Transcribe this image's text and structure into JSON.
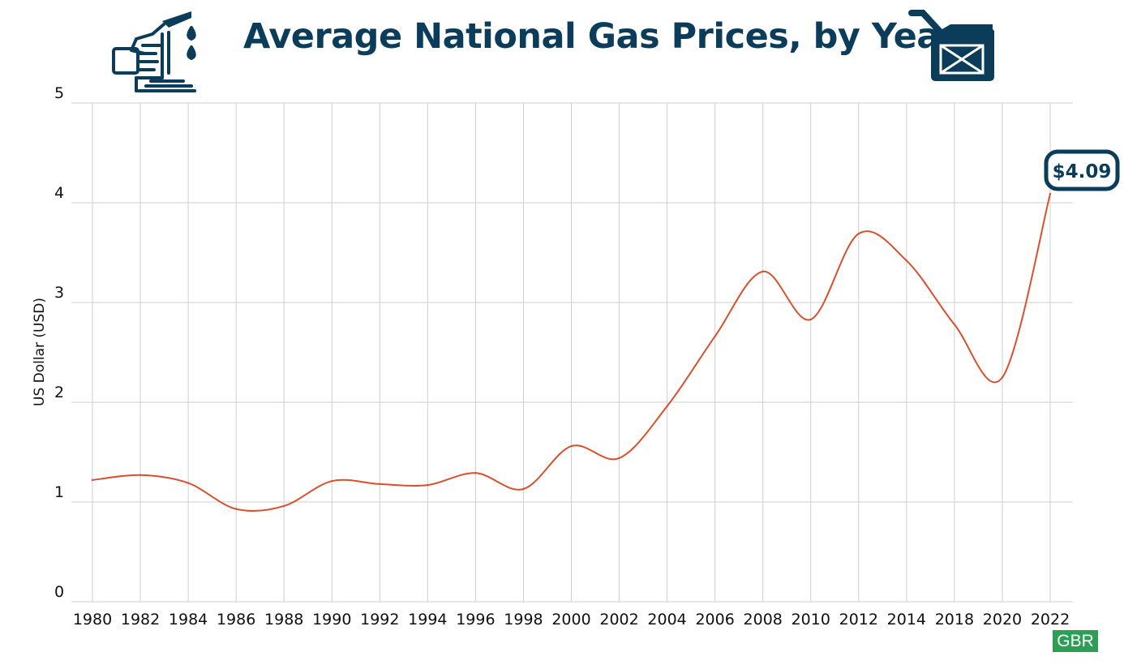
{
  "chart_data": {
    "type": "line",
    "title": "Average National Gas Prices, by Year",
    "ylabel": "US Dollar (USD)",
    "xlabel": "",
    "ylim": [
      0,
      5
    ],
    "yticks": [
      0,
      1,
      2,
      3,
      4,
      5
    ],
    "grid": true,
    "categories": [
      "1980",
      "1982",
      "1984",
      "1986",
      "1988",
      "1990",
      "1992",
      "1994",
      "1996",
      "1998",
      "2000",
      "2002",
      "2004",
      "2006",
      "2008",
      "2010",
      "2012",
      "2014",
      "2018",
      "2020",
      "2022"
    ],
    "series": [
      {
        "values": [
          1.22,
          1.27,
          1.19,
          0.93,
          0.96,
          1.21,
          1.18,
          1.17,
          1.29,
          1.13,
          1.56,
          1.44,
          1.96,
          2.66,
          3.31,
          2.83,
          3.69,
          3.42,
          2.78,
          2.25,
          4.09
        ]
      }
    ],
    "annotation": {
      "text": "$4.09",
      "index": 20
    },
    "colors": {
      "line": "#d9502e",
      "title": "#0b3d5a",
      "grid": "#cfcfcf",
      "watermark": "#2e9e57"
    },
    "icons": [
      "fuel-nozzle-icon",
      "fuel-can-icon"
    ],
    "watermark": "GBR"
  }
}
